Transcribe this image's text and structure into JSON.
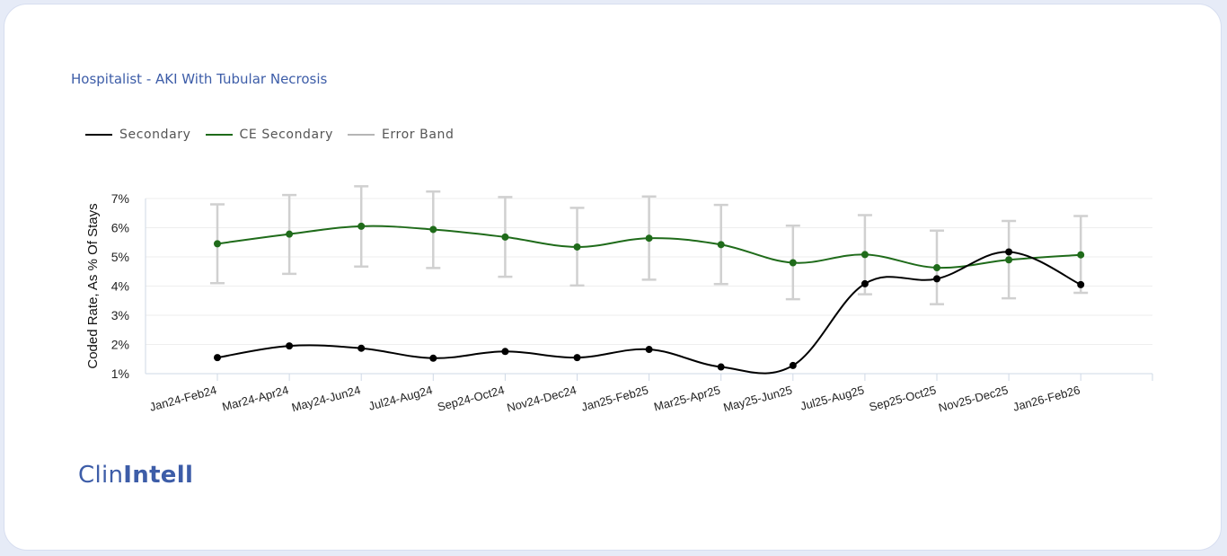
{
  "header": {
    "title": "Hospitalist - AKI With Tubular Necrosis"
  },
  "legend": [
    {
      "label": "Secondary",
      "color": "#000000"
    },
    {
      "label": "CE Secondary",
      "color": "#1f6b1a"
    },
    {
      "label": "Error Band",
      "color": "#b5b5b5"
    }
  ],
  "logo": {
    "part1": "Clin",
    "part2": "Intell"
  },
  "colors": {
    "accent": "#3d5da8",
    "secondary": "#000000",
    "ce_secondary": "#1f6b1a",
    "error_band": "#d0d0d0"
  },
  "chart_data": {
    "type": "line",
    "title": "Hospitalist - AKI With Tubular Necrosis",
    "xlabel": "",
    "ylabel": "Coded Rate, As % Of Stays",
    "ylim": [
      1,
      7
    ],
    "y_ticks": [
      "7%",
      "6%",
      "5%",
      "4%",
      "3%",
      "2%",
      "1%"
    ],
    "grid": true,
    "legend_position": "top-left",
    "categories": [
      "Jan24-Feb24",
      "Mar24-Apr24",
      "May24-Jun24",
      "Jul24-Aug24",
      "Sep24-Oct24",
      "Nov24-Dec24",
      "Jan25-Feb25",
      "Mar25-Apr25",
      "May25-Jun25",
      "Jul25-Aug25",
      "Sep25-Oct25",
      "Nov25-Dec25",
      "Jan26-Feb26"
    ],
    "series": [
      {
        "name": "Secondary",
        "values": [
          1.55,
          1.95,
          1.87,
          1.53,
          1.76,
          1.55,
          1.83,
          1.23,
          1.28,
          4.08,
          4.25,
          5.17,
          4.05
        ]
      },
      {
        "name": "CE Secondary",
        "values": [
          5.45,
          5.78,
          6.05,
          5.94,
          5.68,
          5.34,
          5.64,
          5.42,
          4.8,
          5.08,
          4.63,
          4.9,
          5.07
        ]
      }
    ],
    "error_band": {
      "name": "Error Band",
      "low": [
        4.1,
        4.42,
        4.67,
        4.62,
        4.32,
        4.02,
        4.22,
        4.07,
        3.55,
        3.72,
        3.38,
        3.58,
        3.77
      ],
      "high": [
        6.8,
        7.12,
        7.42,
        7.24,
        7.05,
        6.68,
        7.07,
        6.78,
        6.07,
        6.43,
        5.9,
        6.23,
        6.4
      ]
    }
  }
}
